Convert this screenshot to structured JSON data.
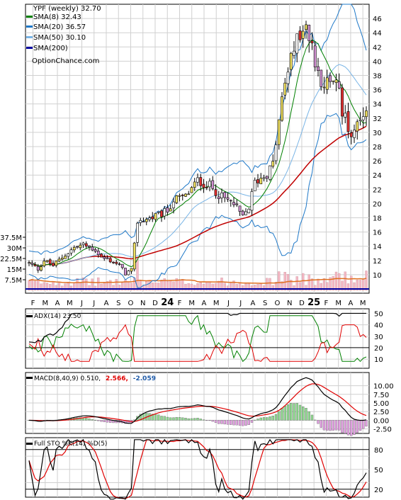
{
  "chart_data": [
    {
      "type": "candlestick",
      "symbol": "YPF (weekly)",
      "last": "32.70",
      "ylim": [
        8,
        48
      ],
      "yticks": [
        10,
        12,
        14,
        16,
        18,
        20,
        22,
        24,
        26,
        28,
        30,
        32,
        34,
        36,
        38,
        40,
        42,
        44,
        46
      ],
      "legend_placement": "top-left",
      "legend": [
        {
          "label": "YPF (weekly) 32.70",
          "color": "#000000"
        },
        {
          "label": "SMA(8) 32.43",
          "color": "#008000"
        },
        {
          "label": "SMA(20) 36.57",
          "color": "#1e78c8"
        },
        {
          "label": "SMA(50) 30.10",
          "color": "#78b4e6"
        },
        {
          "label": "SMA(200)",
          "color": "#0000a0"
        }
      ],
      "watermark": "OptionChance.com",
      "price_path": [
        [
          0,
          11.6
        ],
        [
          3,
          10.8
        ],
        [
          5,
          12.0
        ],
        [
          8,
          11.3
        ],
        [
          12,
          12.8
        ],
        [
          15,
          13.8
        ],
        [
          18,
          14.2
        ],
        [
          22,
          13.5
        ],
        [
          24,
          12.4
        ],
        [
          27,
          12.0
        ],
        [
          30,
          11.3
        ],
        [
          32,
          10.2
        ],
        [
          34,
          10.6
        ],
        [
          36,
          17.5
        ],
        [
          40,
          17.9
        ],
        [
          44,
          18.5
        ],
        [
          46,
          19.0
        ],
        [
          48,
          20.5
        ],
        [
          52,
          21.0
        ],
        [
          56,
          23.2
        ],
        [
          60,
          22.5
        ],
        [
          64,
          20.9
        ],
        [
          68,
          19.9
        ],
        [
          71,
          18.0
        ],
        [
          73,
          19.5
        ],
        [
          75,
          23.0
        ],
        [
          79,
          24.2
        ],
        [
          81,
          25.5
        ],
        [
          83,
          31.5
        ],
        [
          85,
          37.0
        ],
        [
          87,
          40.0
        ],
        [
          89,
          43.0
        ],
        [
          91,
          44.5
        ],
        [
          93,
          43.5
        ],
        [
          95,
          40.0
        ],
        [
          97,
          37.5
        ],
        [
          100,
          36.5
        ],
        [
          102,
          38.0
        ],
        [
          104,
          33.0
        ],
        [
          107,
          30.0
        ],
        [
          110,
          32.5
        ],
        [
          112,
          32.7
        ]
      ],
      "weeks": 113,
      "x_ticks": [
        "F",
        "M",
        "A",
        "M",
        "J",
        "J",
        "A",
        "S",
        "O",
        "N",
        "D",
        "24",
        "F",
        "M",
        "A",
        "M",
        "J",
        "J",
        "A",
        "S",
        "O",
        "N",
        "D",
        "25",
        "F",
        "M",
        "A",
        "M"
      ]
    },
    {
      "type": "bar",
      "name": "volume",
      "yticks": [
        "37.5M",
        "30M",
        "22.5M",
        "15M",
        "7.5M"
      ],
      "ytick_values": [
        37.5,
        30,
        22.5,
        15,
        7.5
      ],
      "ylim": [
        0,
        42
      ],
      "bar_color": "#f4b8c4",
      "avg_color": "#e07020"
    },
    {
      "type": "line",
      "name": "ADX",
      "label": "ADX(14) 23.50",
      "ylim": [
        2,
        54
      ],
      "yticks": [
        10,
        20,
        30,
        40,
        50
      ],
      "reference": 20,
      "series_colors": {
        "adx": "#000000",
        "plus_di": "#008000",
        "minus_di": "#e00000"
      }
    },
    {
      "type": "line",
      "name": "MACD",
      "label": "MACD(8,40,9) 0.510,",
      "macd_value": "2.566,",
      "signal_value": "-2.059",
      "ylim": [
        -3.8,
        13.8
      ],
      "yticks": [
        "10.00",
        "7.50",
        "5.00",
        "2.50",
        "0.00",
        "-2.50"
      ],
      "ytick_values": [
        10,
        7.5,
        5,
        2.5,
        0,
        -2.5
      ],
      "series_colors": {
        "macd": "#000000",
        "signal": "#e00000",
        "hist_pos": "#90d890",
        "hist_neg": "#e0a0e0"
      }
    },
    {
      "type": "line",
      "name": "Stochastic",
      "label": "Full STO %K(14) %D(5)",
      "ylim": [
        8,
        98
      ],
      "yticks": [
        20,
        50,
        80
      ],
      "series_colors": {
        "k": "#000000",
        "d": "#e00000"
      }
    }
  ]
}
